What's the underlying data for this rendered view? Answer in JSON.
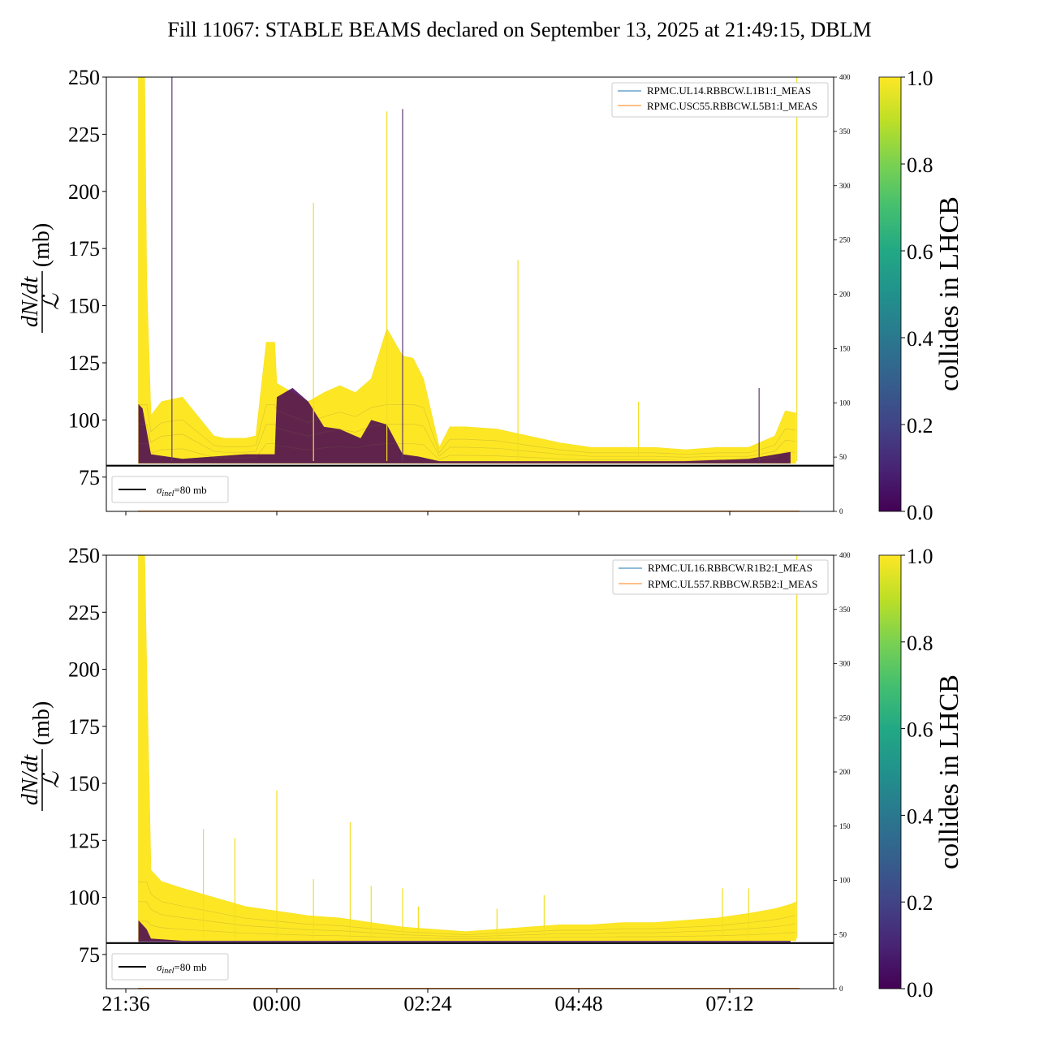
{
  "title": "Fill 11067: STABLE BEAMS declared on September 13, 2025 at 21:49:15, DBLM",
  "chart_data": [
    {
      "type": "area",
      "panel": "top",
      "ylabel_left": "dN/dt / ℒ (mb)",
      "ylim_left": [
        60,
        250
      ],
      "yticks_left": [
        "75",
        "100",
        "125",
        "150",
        "175",
        "200",
        "225",
        "250"
      ],
      "ylim_right": [
        0,
        400
      ],
      "yticks_right": [
        "0",
        "50",
        "100",
        "150",
        "200",
        "250",
        "300",
        "350",
        "400"
      ],
      "xticks": [
        "21:36",
        "00:00",
        "02:24",
        "04:48",
        "07:12"
      ],
      "x_range": [
        "21:36",
        "09:03"
      ],
      "legend_upper": [
        "RPMC.UL14.RBBCW.L1B1:I_MEAS",
        "RPMC.USC55.RBBCW.L5B1:I_MEAS"
      ],
      "legend_lower": "σinel=80 mb",
      "reference_line_mb": 80,
      "colorbar": {
        "label": "collides in LHCB",
        "range": [
          0.0,
          1.0
        ],
        "ticks": [
          "0.0",
          "0.2",
          "0.4",
          "0.6",
          "0.8",
          "1.0"
        ],
        "colormap": "viridis"
      },
      "envelope": {
        "x": [
          "21:48",
          "21:50",
          "21:52",
          "21:54",
          "21:56",
          "22:00",
          "22:10",
          "22:30",
          "23:00",
          "23:10",
          "23:20",
          "23:30",
          "23:40",
          "23:50",
          "23:58",
          "00:00",
          "00:15",
          "00:30",
          "00:45",
          "01:00",
          "01:15",
          "01:30",
          "01:45",
          "02:00",
          "02:10",
          "02:20",
          "02:35",
          "02:45",
          "03:00",
          "03:30",
          "04:00",
          "04:30",
          "05:00",
          "05:30",
          "06:00",
          "06:30",
          "07:00",
          "07:30",
          "07:55",
          "08:05",
          "08:15"
        ],
        "upper": [
          250,
          250,
          250,
          250,
          160,
          102,
          108,
          110,
          93,
          92,
          92,
          92,
          93,
          134,
          134,
          116,
          112,
          108,
          112,
          115,
          112,
          118,
          140,
          128,
          127,
          118,
          88,
          97,
          97,
          96,
          93,
          90,
          88,
          88,
          88,
          87,
          88,
          88,
          93,
          104,
          103
        ],
        "lower": [
          81,
          81,
          81,
          81,
          81,
          81,
          81,
          81,
          81,
          81,
          81,
          81,
          81,
          81,
          81,
          81,
          81,
          81,
          81,
          81,
          81,
          81,
          81,
          81,
          81,
          81,
          81,
          81,
          81,
          81,
          81,
          81,
          81,
          81,
          81,
          81,
          81,
          81,
          81,
          81,
          81
        ]
      },
      "purple_band": {
        "x": [
          "21:48",
          "21:52",
          "21:56",
          "22:00",
          "22:30",
          "23:00",
          "23:30",
          "23:58",
          "00:00",
          "00:15",
          "00:30",
          "00:45",
          "01:00",
          "01:20",
          "01:30",
          "01:45",
          "02:00",
          "02:15",
          "02:35",
          "03:30",
          "04:30",
          "05:30",
          "06:30",
          "07:30",
          "08:10"
        ],
        "upper": [
          107,
          105,
          95,
          85,
          83,
          84,
          85,
          85,
          110,
          114,
          108,
          97,
          96,
          92,
          100,
          98,
          85,
          84,
          82,
          82,
          82,
          82,
          82,
          83,
          86
        ],
        "lower": [
          81,
          81,
          81,
          81,
          81,
          81,
          81,
          81,
          81,
          81,
          81,
          81,
          81,
          81,
          81,
          81,
          81,
          81,
          81,
          81,
          81,
          81,
          81,
          81,
          81
        ]
      },
      "spikes": [
        {
          "x": "22:20",
          "y": 250
        },
        {
          "x": "00:35",
          "y": 195
        },
        {
          "x": "01:45",
          "y": 235
        },
        {
          "x": "02:00",
          "y": 236
        },
        {
          "x": "03:50",
          "y": 170
        },
        {
          "x": "05:45",
          "y": 108
        },
        {
          "x": "07:40",
          "y": 114
        },
        {
          "x": "08:16",
          "y": 250
        }
      ]
    },
    {
      "type": "area",
      "panel": "bottom",
      "ylabel_left": "dN/dt / ℒ (mb)",
      "ylim_left": [
        60,
        250
      ],
      "yticks_left": [
        "75",
        "100",
        "125",
        "150",
        "175",
        "200",
        "225",
        "250"
      ],
      "ylim_right": [
        0,
        400
      ],
      "yticks_right": [
        "0",
        "50",
        "100",
        "150",
        "200",
        "250",
        "300",
        "350",
        "400"
      ],
      "xticks": [
        "21:36",
        "00:00",
        "02:24",
        "04:48",
        "07:12"
      ],
      "x_range": [
        "21:36",
        "09:03"
      ],
      "legend_upper": [
        "RPMC.UL16.RBBCW.R1B2:I_MEAS",
        "RPMC.UL557.RBBCW.R5B2:I_MEAS"
      ],
      "legend_lower": "σinel=80 mb",
      "reference_line_mb": 80,
      "colorbar": {
        "label": "collides in LHCB",
        "range": [
          0.0,
          1.0
        ],
        "ticks": [
          "0.0",
          "0.2",
          "0.4",
          "0.6",
          "0.8",
          "1.0"
        ],
        "colormap": "viridis"
      },
      "envelope": {
        "x": [
          "21:48",
          "21:50",
          "21:52",
          "21:54",
          "21:56",
          "22:00",
          "22:10",
          "22:30",
          "23:00",
          "23:30",
          "00:00",
          "00:30",
          "01:00",
          "01:30",
          "02:00",
          "02:30",
          "03:00",
          "03:30",
          "04:00",
          "04:30",
          "05:00",
          "05:30",
          "06:00",
          "06:30",
          "07:00",
          "07:30",
          "07:55",
          "08:10",
          "08:15"
        ],
        "upper": [
          250,
          250,
          250,
          250,
          200,
          112,
          107,
          104,
          100,
          96,
          94,
          92,
          91,
          89,
          87,
          86,
          85,
          86,
          87,
          88,
          88,
          89,
          89,
          90,
          91,
          93,
          95,
          97,
          98
        ],
        "lower": [
          81,
          81,
          81,
          81,
          81,
          81,
          81,
          81,
          81,
          81,
          81,
          81,
          81,
          81,
          81,
          81,
          81,
          81,
          81,
          81,
          81,
          81,
          81,
          81,
          81,
          81,
          81,
          81,
          81
        ]
      },
      "purple_band": {
        "x": [
          "21:48",
          "21:52",
          "21:56",
          "22:00",
          "22:30",
          "23:30",
          "01:00",
          "02:30",
          "04:30",
          "06:30",
          "08:10"
        ],
        "upper": [
          90,
          88,
          86,
          82,
          81,
          81,
          81,
          81,
          81,
          81,
          81
        ],
        "lower": [
          80.5,
          80.5,
          80.5,
          80.5,
          80.5,
          80.5,
          80.5,
          80.5,
          80.5,
          80.5,
          80.5
        ]
      },
      "spikes": [
        {
          "x": "22:50",
          "y": 130
        },
        {
          "x": "23:20",
          "y": 126
        },
        {
          "x": "00:00",
          "y": 147
        },
        {
          "x": "00:35",
          "y": 108
        },
        {
          "x": "01:10",
          "y": 133
        },
        {
          "x": "01:30",
          "y": 105
        },
        {
          "x": "02:00",
          "y": 104
        },
        {
          "x": "02:15",
          "y": 96
        },
        {
          "x": "03:30",
          "y": 95
        },
        {
          "x": "04:15",
          "y": 101
        },
        {
          "x": "07:05",
          "y": 104
        },
        {
          "x": "07:30",
          "y": 104
        },
        {
          "x": "08:16",
          "y": 250
        }
      ]
    }
  ]
}
